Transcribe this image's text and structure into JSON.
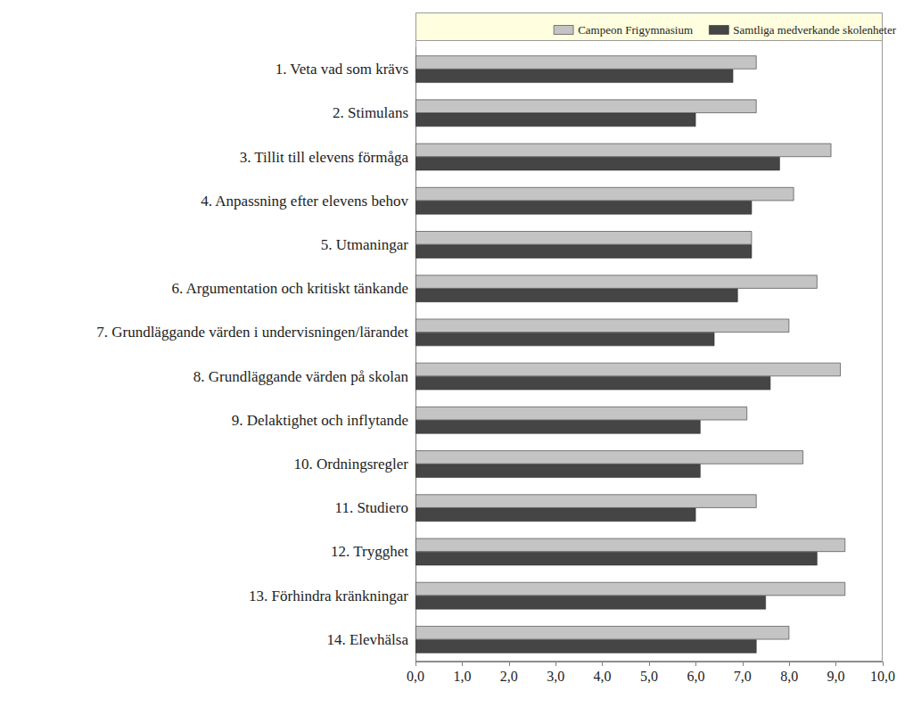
{
  "chart_data": {
    "type": "bar",
    "orientation": "horizontal",
    "categories": [
      "1. Veta vad som krävs",
      "2. Stimulans",
      "3. Tillit till elevens förmåga",
      "4. Anpassning efter elevens behov",
      "5. Utmaningar",
      "6. Argumentation och kritiskt tänkande",
      "7. Grundläggande värden i undervisningen/lärandet",
      "8. Grundläggande värden på skolan",
      "9. Delaktighet och inflytande",
      "10. Ordningsregler",
      "11. Studiero",
      "12. Trygghet",
      "13. Förhindra kränkningar",
      "14. Elevhälsa"
    ],
    "series": [
      {
        "name": "Campeon Frigymnasium",
        "color": "#c4c4c4",
        "values": [
          7.3,
          7.3,
          8.9,
          8.1,
          7.2,
          8.6,
          8.0,
          9.1,
          7.1,
          8.3,
          7.3,
          9.2,
          9.2,
          8.0
        ]
      },
      {
        "name": "Samtliga medverkande skolenheter",
        "color": "#454545",
        "values": [
          6.8,
          6.0,
          7.8,
          7.2,
          7.2,
          6.9,
          6.4,
          7.6,
          6.1,
          6.1,
          6.0,
          8.6,
          7.5,
          7.3
        ]
      }
    ],
    "xlim": [
      0,
      10
    ],
    "xticks": [
      {
        "value": 0,
        "label": "0,0"
      },
      {
        "value": 1,
        "label": "1,0"
      },
      {
        "value": 2,
        "label": "2,0"
      },
      {
        "value": 3,
        "label": "3,0"
      },
      {
        "value": 4,
        "label": "4,0"
      },
      {
        "value": 5,
        "label": "5,0"
      },
      {
        "value": 6,
        "label": "6,0"
      },
      {
        "value": 7,
        "label": "7,0"
      },
      {
        "value": 8,
        "label": "8,0"
      },
      {
        "value": 9,
        "label": "9,0"
      },
      {
        "value": 10,
        "label": "10,0"
      }
    ],
    "grid": false,
    "legend": "top"
  }
}
